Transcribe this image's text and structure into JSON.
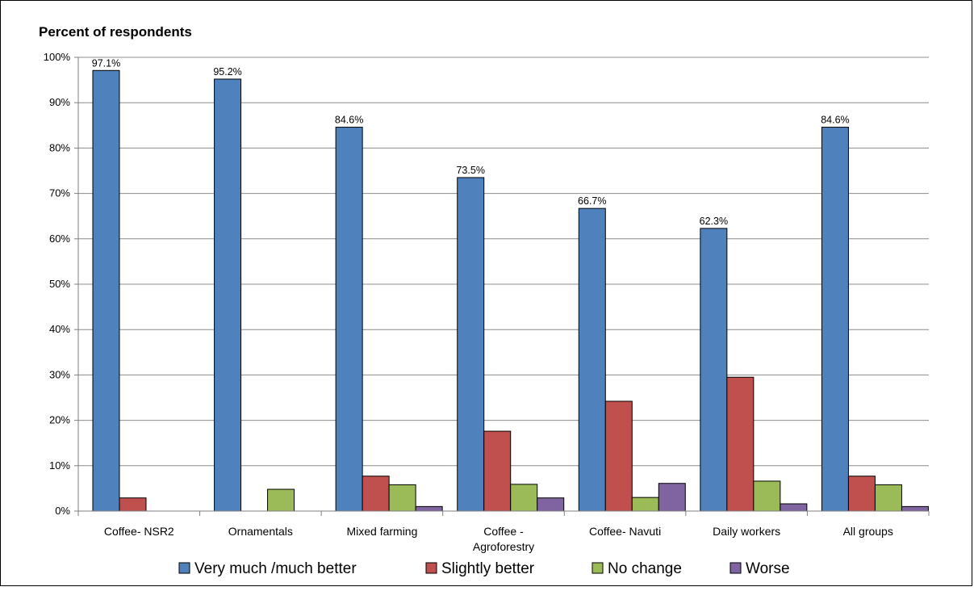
{
  "chart_data": {
    "type": "bar",
    "title": "Percent of respondents",
    "categories": [
      [
        "Coffee- NSR2"
      ],
      [
        "Ornamentals"
      ],
      [
        "Mixed farming"
      ],
      [
        "Coffee -",
        "Agroforestry"
      ],
      [
        "Coffee- Navuti"
      ],
      [
        "Daily workers"
      ],
      [
        "All groups"
      ]
    ],
    "series": [
      {
        "name": "Very much /much better",
        "color": "#4F81BD",
        "values": [
          97.1,
          95.2,
          84.6,
          73.5,
          66.7,
          62.3,
          84.6
        ]
      },
      {
        "name": "Slightly better",
        "color": "#C0504D",
        "values": [
          2.9,
          0,
          7.7,
          17.6,
          24.2,
          29.5,
          7.7
        ]
      },
      {
        "name": "No change",
        "color": "#9BBB59",
        "values": [
          0,
          4.8,
          5.8,
          5.9,
          3.0,
          6.6,
          5.8
        ]
      },
      {
        "name": "Worse",
        "color": "#8064A2",
        "values": [
          0,
          0,
          1.0,
          2.9,
          6.1,
          1.6,
          1.0
        ]
      }
    ],
    "data_labels": {
      "series": "Very much /much better",
      "labels": [
        "97.1%",
        "95.2%",
        "84.6%",
        "73.5%",
        "66.7%",
        "62.3%",
        "84.6%"
      ]
    },
    "ylim": [
      0,
      100
    ],
    "yticks": [
      0,
      10,
      20,
      30,
      40,
      50,
      60,
      70,
      80,
      90,
      100
    ],
    "ytick_suffix": "%",
    "grid": true,
    "legend_position": "bottom"
  }
}
